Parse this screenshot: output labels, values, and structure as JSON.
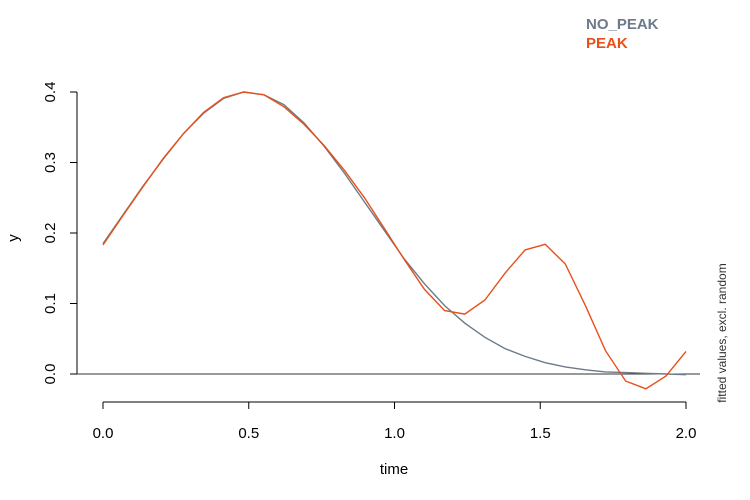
{
  "chart_data": {
    "type": "line",
    "xlabel": "time",
    "ylabel": "y",
    "side_note": "fitted values, excl. random",
    "xlim": [
      0,
      2
    ],
    "ylim": [
      0,
      0.4
    ],
    "x_ticks": [
      "0.0",
      "0.5",
      "1.0",
      "1.5",
      "2.0"
    ],
    "y_ticks": [
      "0.0",
      "0.1",
      "0.2",
      "0.3",
      "0.4"
    ],
    "zero_line": true,
    "legend": {
      "position": "top-right"
    },
    "series": [
      {
        "name": "NO_PEAK",
        "color": "#6c7a89",
        "x": [
          0,
          0.069,
          0.138,
          0.207,
          0.276,
          0.345,
          0.414,
          0.483,
          0.552,
          0.621,
          0.69,
          0.759,
          0.828,
          0.897,
          0.966,
          1.034,
          1.103,
          1.172,
          1.241,
          1.31,
          1.379,
          1.448,
          1.517,
          1.586,
          1.655,
          1.724,
          1.793,
          1.862,
          1.931,
          2.0
        ],
        "values": [
          0.185,
          0.226,
          0.267,
          0.305,
          0.341,
          0.37,
          0.391,
          0.4,
          0.396,
          0.382,
          0.356,
          0.323,
          0.285,
          0.244,
          0.203,
          0.163,
          0.128,
          0.097,
          0.072,
          0.052,
          0.036,
          0.025,
          0.016,
          0.01,
          0.006,
          0.003,
          0.002,
          0.001,
          0.0,
          -0.001
        ]
      },
      {
        "name": "PEAK",
        "color": "#e8501a",
        "x": [
          0,
          0.069,
          0.138,
          0.207,
          0.276,
          0.345,
          0.414,
          0.483,
          0.552,
          0.621,
          0.69,
          0.759,
          0.828,
          0.897,
          0.966,
          1.034,
          1.103,
          1.172,
          1.241,
          1.31,
          1.379,
          1.448,
          1.517,
          1.586,
          1.655,
          1.724,
          1.793,
          1.862,
          1.931,
          2.0
        ],
        "values": [
          0.183,
          0.225,
          0.266,
          0.306,
          0.341,
          0.371,
          0.392,
          0.4,
          0.396,
          0.379,
          0.354,
          0.324,
          0.289,
          0.25,
          0.206,
          0.162,
          0.12,
          0.09,
          0.085,
          0.105,
          0.143,
          0.176,
          0.184,
          0.156,
          0.097,
          0.033,
          -0.01,
          -0.021,
          -0.003,
          0.032
        ]
      }
    ]
  }
}
